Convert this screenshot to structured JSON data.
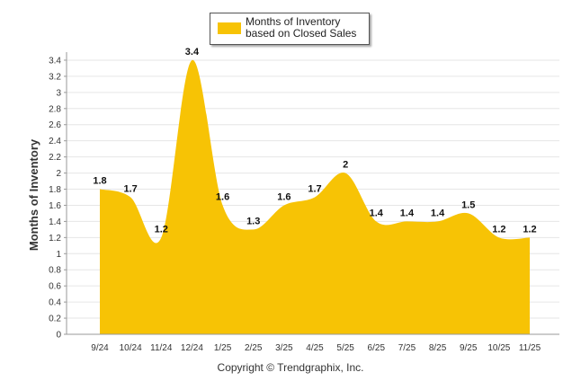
{
  "chart_data": {
    "type": "area",
    "title": "",
    "xlabel": "",
    "ylabel": "Months of Inventory",
    "ylim": [
      0,
      3.5
    ],
    "y_ticks": [
      0,
      0.2,
      0.4,
      0.6,
      0.8,
      1,
      1.2,
      1.4,
      1.6,
      1.8,
      2,
      2.2,
      2.4,
      2.6,
      2.8,
      3,
      3.2,
      3.4
    ],
    "categories": [
      "9/24",
      "10/24",
      "11/24",
      "12/24",
      "1/25",
      "2/25",
      "3/25",
      "4/25",
      "5/25",
      "6/25",
      "7/25",
      "8/25",
      "9/25",
      "10/25",
      "11/25"
    ],
    "series": [
      {
        "name": "Months of Inventory based on Closed Sales",
        "values": [
          1.8,
          1.7,
          1.2,
          3.4,
          1.6,
          1.3,
          1.6,
          1.7,
          2,
          1.4,
          1.4,
          1.4,
          1.5,
          1.2,
          1.2
        ],
        "color": "#f7c305"
      }
    ],
    "grid": true,
    "legend_position": "top-center"
  },
  "legend": {
    "label": "Months of Inventory based on Closed Sales"
  },
  "footer": {
    "copyright": "Copyright © Trendgraphix, Inc."
  },
  "colors": {
    "series": "#f7c305",
    "grid": "#e6e6e6",
    "axis": "#999999"
  }
}
